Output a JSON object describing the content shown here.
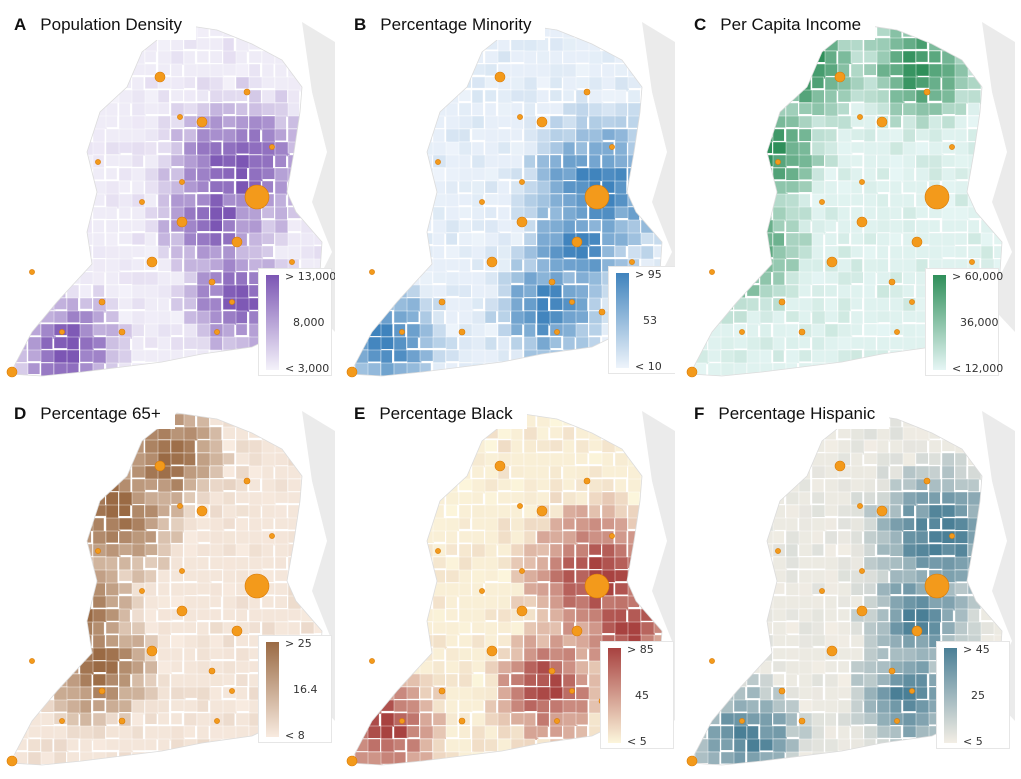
{
  "figure": {
    "panels": [
      {
        "letter": "A",
        "title": "Population Density",
        "legend_max": "> 13,000",
        "legend_mid": "8,000",
        "legend_min": "< 3,000",
        "color_low": "#f4f2fa",
        "color_high": "#7c56b4"
      },
      {
        "letter": "B",
        "title": "Percentage Minority",
        "legend_max": "> 95",
        "legend_mid": "53",
        "legend_min": "< 10",
        "color_low": "#eef4fb",
        "color_high": "#3f83bd"
      },
      {
        "letter": "C",
        "title": "Per Capita Income",
        "legend_max": "> 60,000",
        "legend_mid": "36,000",
        "legend_min": "< 12,000",
        "color_low": "#e6f6f5",
        "color_high": "#2f8f5a"
      },
      {
        "letter": "D",
        "title": "Percentage 65+",
        "legend_max": "> 25",
        "legend_mid": "16.4",
        "legend_min": "< 8",
        "color_low": "#f8ebe0",
        "color_high": "#9a6a44"
      },
      {
        "letter": "E",
        "title": "Percentage Black",
        "legend_max": "> 85",
        "legend_mid": "45",
        "legend_min": "< 5",
        "color_low": "#fcf6dc",
        "color_high": "#a84240"
      },
      {
        "letter": "F",
        "title": "Percentage Hispanic",
        "legend_max": "> 45",
        "legend_mid": "25",
        "legend_min": "< 5",
        "color_low": "#f3eee5",
        "color_high": "#4a7f96"
      }
    ],
    "marker_color": "#f39a1b",
    "background_color": "#ebebeb"
  }
}
